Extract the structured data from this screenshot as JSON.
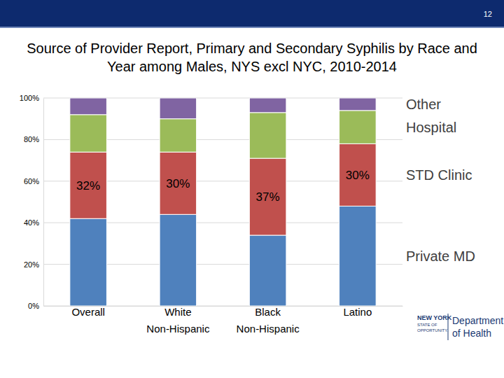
{
  "chart_data": {
    "type": "bar",
    "stacked": true,
    "title": "Source of Provider Report, Primary and Secondary Syphilis by Race and Year among Males, NYS excl NYC, 2010-2014",
    "categories": [
      "Overall",
      "White Non-Hispanic",
      "Black Non-Hispanic",
      "Latino"
    ],
    "series": [
      {
        "name": "Private MD",
        "color": "#4f81bd",
        "values": [
          42,
          44,
          34,
          48
        ]
      },
      {
        "name": "STD Clinic",
        "color": "#c0504d",
        "values": [
          32,
          30,
          37,
          30
        ],
        "data_labels": true,
        "value_labels": [
          "32%",
          "30%",
          "37%",
          "30%"
        ]
      },
      {
        "name": "Hospital",
        "color": "#9bbb59",
        "values": [
          18,
          16,
          22,
          16
        ]
      },
      {
        "name": "Other",
        "color": "#8064a2",
        "values": [
          8,
          10,
          7,
          6
        ]
      }
    ],
    "ylim": [
      0,
      100
    ],
    "yticks": [
      {
        "value": 0,
        "label": "0%"
      },
      {
        "value": 20,
        "label": "20%"
      },
      {
        "value": 40,
        "label": "40%"
      },
      {
        "value": 60,
        "label": "60%"
      },
      {
        "value": 80,
        "label": "80%"
      },
      {
        "value": 100,
        "label": "100%"
      }
    ],
    "grid": true,
    "legend": "right"
  },
  "slide": {
    "page_number": "12",
    "logo": [
      "NEW YORK",
      "STATE OF",
      "OPPORTUNITY.",
      "Department",
      "of Health"
    ]
  }
}
